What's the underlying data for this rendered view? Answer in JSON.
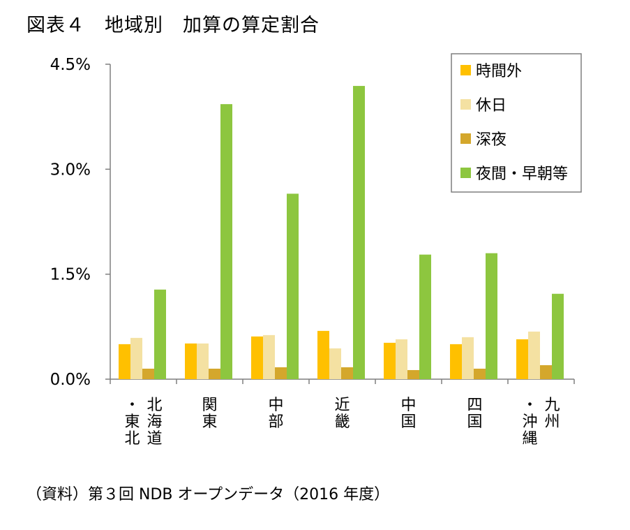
{
  "title": "図表４　地域別　加算の算定割合",
  "source": "（資料）第３回 NDB オープンデータ（2016 年度）",
  "colors": {
    "時間外": "#FFC000",
    "休日": "#F4E1A2",
    "深夜": "#D4A72C",
    "夜間・早朝等": "#8DC63F"
  },
  "chart_data": {
    "type": "bar",
    "categories": [
      "北海道・東北",
      "関東",
      "中部",
      "近畿",
      "中国",
      "四国",
      "九州・沖縄"
    ],
    "category_label_columns": [
      [
        "北海道",
        "・東北"
      ],
      [
        "関東"
      ],
      [
        "中部"
      ],
      [
        "近畿"
      ],
      [
        "中国"
      ],
      [
        "四国"
      ],
      [
        "九州",
        "・沖縄"
      ]
    ],
    "series": [
      {
        "name": "時間外",
        "values": [
          0.5,
          0.51,
          0.61,
          0.69,
          0.52,
          0.5,
          0.57
        ]
      },
      {
        "name": "休日",
        "values": [
          0.59,
          0.51,
          0.63,
          0.44,
          0.57,
          0.6,
          0.68
        ]
      },
      {
        "name": "深夜",
        "values": [
          0.15,
          0.15,
          0.17,
          0.17,
          0.13,
          0.15,
          0.2
        ]
      },
      {
        "name": "夜間・早朝等",
        "values": [
          1.28,
          3.93,
          2.65,
          4.19,
          1.78,
          1.8,
          1.22
        ]
      }
    ],
    "yticks": [
      "0.0%",
      "1.5%",
      "3.0%",
      "4.5%"
    ],
    "ytick_values": [
      0,
      1.5,
      3.0,
      4.5
    ],
    "ylim": [
      0,
      4.5
    ],
    "xlabel": "",
    "ylabel": "",
    "grid": false,
    "legend_position": "top-right"
  }
}
